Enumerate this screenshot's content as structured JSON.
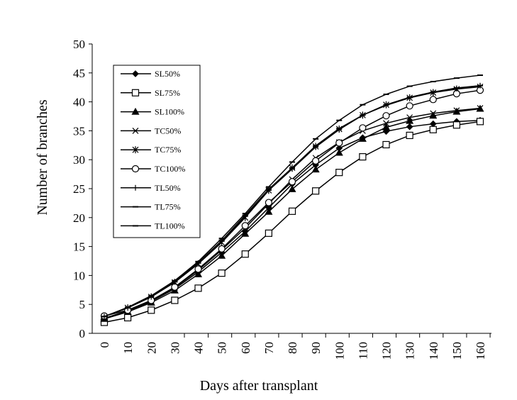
{
  "chart_data": {
    "type": "line",
    "xlabel": "Days after transplant",
    "ylabel": "Number of branches",
    "xlim": [
      0,
      160
    ],
    "ylim": [
      0,
      50
    ],
    "x": [
      0,
      10,
      20,
      30,
      40,
      50,
      60,
      70,
      80,
      90,
      100,
      110,
      120,
      130,
      140,
      150,
      160
    ],
    "x_ticks": [
      "0",
      "10",
      "20",
      "30",
      "40",
      "50",
      "60",
      "70",
      "80",
      "90",
      "100",
      "110",
      "120",
      "130",
      "140",
      "150",
      "160"
    ],
    "y_ticks": [
      "0",
      "5",
      "10",
      "15",
      "20",
      "25",
      "30",
      "35",
      "40",
      "45",
      "50"
    ],
    "grid": false,
    "legend_position": "top-left",
    "series": [
      {
        "name": "SL50%",
        "marker": "diamond",
        "values": [
          2.6,
          3.8,
          5.5,
          7.7,
          10.6,
          14.0,
          17.6,
          21.7,
          25.8,
          29.1,
          32.0,
          33.8,
          34.9,
          35.7,
          36.2,
          36.6,
          36.8
        ]
      },
      {
        "name": "SL75%",
        "marker": "square",
        "values": [
          1.9,
          2.7,
          4.0,
          5.7,
          7.8,
          10.4,
          13.7,
          17.3,
          21.1,
          24.6,
          27.8,
          30.5,
          32.6,
          34.2,
          35.2,
          36.0,
          36.6
        ]
      },
      {
        "name": "SL100%",
        "marker": "triangle",
        "values": [
          2.5,
          3.7,
          5.3,
          7.4,
          10.2,
          13.4,
          17.2,
          21.0,
          24.9,
          28.3,
          31.2,
          33.6,
          35.6,
          36.7,
          37.6,
          38.3,
          38.8
        ]
      },
      {
        "name": "TC50%",
        "marker": "x",
        "values": [
          2.6,
          3.9,
          5.6,
          7.9,
          10.9,
          14.4,
          18.2,
          22.4,
          26.6,
          30.3,
          33.0,
          35.0,
          36.3,
          37.3,
          38.0,
          38.5,
          38.9
        ]
      },
      {
        "name": "TC75%",
        "marker": "star",
        "values": [
          2.9,
          4.4,
          6.3,
          8.8,
          12.0,
          15.7,
          20.0,
          24.7,
          28.6,
          32.3,
          35.3,
          37.7,
          39.5,
          40.7,
          41.6,
          42.2,
          42.6
        ]
      },
      {
        "name": "TC100%",
        "marker": "circle",
        "values": [
          3.0,
          4.0,
          5.7,
          8.0,
          11.1,
          14.6,
          18.6,
          22.6,
          26.2,
          29.8,
          32.9,
          35.5,
          37.6,
          39.3,
          40.4,
          41.4,
          42.0
        ]
      },
      {
        "name": "TL50%",
        "marker": "plus",
        "values": [
          2.9,
          4.4,
          6.3,
          8.9,
          12.1,
          15.9,
          20.2,
          24.7,
          28.4,
          32.2,
          35.2,
          37.7,
          39.4,
          40.7,
          41.6,
          42.3,
          42.8
        ]
      },
      {
        "name": "TL75%",
        "marker": "dash",
        "values": [
          2.9,
          4.4,
          6.3,
          8.9,
          12.2,
          16.0,
          20.4,
          24.9,
          28.6,
          32.4,
          35.4,
          37.7,
          39.5,
          40.8,
          41.7,
          42.4,
          42.8
        ]
      },
      {
        "name": "TL100%",
        "marker": "dash",
        "values": [
          2.9,
          4.5,
          6.5,
          9.1,
          12.4,
          16.4,
          20.7,
          25.3,
          29.6,
          33.6,
          36.8,
          39.5,
          41.3,
          42.7,
          43.5,
          44.1,
          44.6
        ]
      }
    ]
  }
}
